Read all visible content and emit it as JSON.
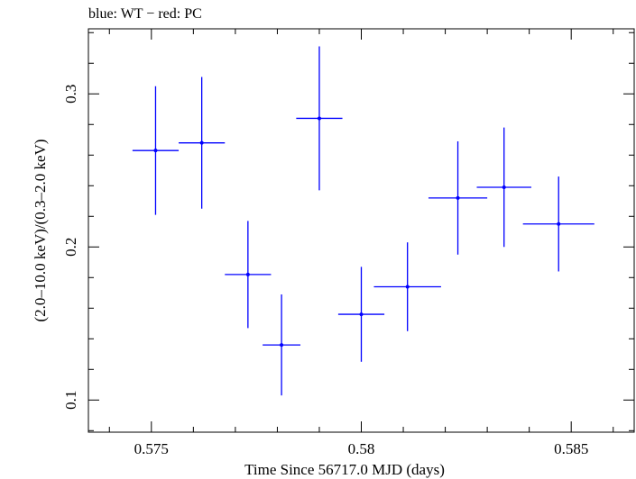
{
  "chart_data": {
    "type": "scatter",
    "title": "blue: WT − red: PC",
    "xlabel": "Time Since 56717.0 MJD (days)",
    "ylabel": "(2.0–10.0 keV)/(0.3–2.0 keV)",
    "xlim": [
      0.5735,
      0.5865
    ],
    "ylim": [
      0.079,
      0.3425
    ],
    "grid": false,
    "x_ticks": [
      {
        "value": 0.575,
        "label": "0.575"
      },
      {
        "value": 0.58,
        "label": "0.58"
      },
      {
        "value": 0.585,
        "label": "0.585"
      }
    ],
    "y_ticks": [
      {
        "value": 0.1,
        "label": "0.1"
      },
      {
        "value": 0.2,
        "label": "0.2"
      },
      {
        "value": 0.3,
        "label": "0.3"
      }
    ],
    "series": [
      {
        "color": "#0000ff",
        "points": [
          {
            "x": 0.5751,
            "y": 0.263,
            "xerr": 0.00055,
            "yerr": 0.042
          },
          {
            "x": 0.5762,
            "y": 0.268,
            "xerr": 0.00055,
            "yerr": 0.043
          },
          {
            "x": 0.5773,
            "y": 0.182,
            "xerr": 0.00055,
            "yerr": 0.035
          },
          {
            "x": 0.5781,
            "y": 0.136,
            "xerr": 0.00045,
            "yerr": 0.033
          },
          {
            "x": 0.579,
            "y": 0.284,
            "xerr": 0.00055,
            "yerr": 0.047
          },
          {
            "x": 0.58,
            "y": 0.156,
            "xerr": 0.00055,
            "yerr": 0.031
          },
          {
            "x": 0.5811,
            "y": 0.174,
            "xerr": 0.0008,
            "yerr": 0.029
          },
          {
            "x": 0.5823,
            "y": 0.232,
            "xerr": 0.0007,
            "yerr": 0.037
          },
          {
            "x": 0.5834,
            "y": 0.239,
            "xerr": 0.00065,
            "yerr": 0.039
          },
          {
            "x": 0.5847,
            "y": 0.215,
            "xerr": 0.00085,
            "yerr": 0.031
          }
        ]
      }
    ]
  }
}
